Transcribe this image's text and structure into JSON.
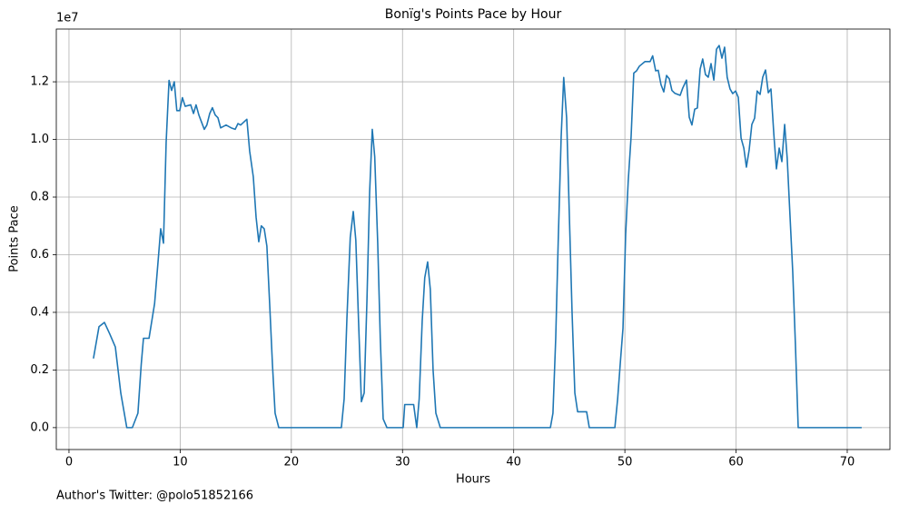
{
  "chart_data": {
    "type": "line",
    "title": "Bonïg's Points Pace by Hour",
    "x_label": "Hours",
    "y_label": "Points Pace",
    "y_offset_label": "1e7",
    "footer": "Author's Twitter: @polo51852166",
    "grid": true,
    "xlim": [
      -1.14,
      73.84
    ],
    "ylim": [
      -0.076,
      1.383
    ],
    "xticks": [
      0,
      10,
      20,
      30,
      40,
      50,
      60,
      70
    ],
    "yticks": [
      {
        "value": 0,
        "label": "0.0"
      },
      0.2,
      0.4,
      0.6,
      0.8,
      {
        "value": 1,
        "label": "1.0"
      },
      1.2
    ],
    "x": [
      2.2,
      2.7,
      3.19,
      3.68,
      4.17,
      4.66,
      5.2,
      5.7,
      6.2,
      6.5,
      6.7,
      7.2,
      7.7,
      8.0,
      8.25,
      8.5,
      8.74,
      9.0,
      9.23,
      9.47,
      9.7,
      9.96,
      10.2,
      10.45,
      10.95,
      11.2,
      11.43,
      11.68,
      12.17,
      12.4,
      12.66,
      12.9,
      13.15,
      13.4,
      13.64,
      14.13,
      14.6,
      14.95,
      15.2,
      15.44,
      16.0,
      16.25,
      16.58,
      16.83,
      17.07,
      17.3,
      17.56,
      17.8,
      18.05,
      18.3,
      18.54,
      18.87,
      24.5,
      24.75,
      25.0,
      25.3,
      25.57,
      25.8,
      26.05,
      26.3,
      26.55,
      26.8,
      27.04,
      27.28,
      27.5,
      27.77,
      28.0,
      28.26,
      28.6,
      30.06,
      30.2,
      31.0,
      31.28,
      31.5,
      31.77,
      32.0,
      32.26,
      32.5,
      32.75,
      33.0,
      33.4,
      43.3,
      43.53,
      43.78,
      44.0,
      44.27,
      44.5,
      44.76,
      45.0,
      45.25,
      45.5,
      45.75,
      46.56,
      46.8,
      49.1,
      49.35,
      49.6,
      49.83,
      50.07,
      50.3,
      50.56,
      50.8,
      51.05,
      51.3,
      51.8,
      52.27,
      52.5,
      52.77,
      53.0,
      53.25,
      53.5,
      53.75,
      54.0,
      54.23,
      54.5,
      54.97,
      55.2,
      55.54,
      55.79,
      56.03,
      56.28,
      56.52,
      56.77,
      57.0,
      57.25,
      57.5,
      57.75,
      58.0,
      58.24,
      58.48,
      58.73,
      58.97,
      59.2,
      59.46,
      59.7,
      59.96,
      60.2,
      60.45,
      60.7,
      60.93,
      61.18,
      61.42,
      61.67,
      61.9,
      62.16,
      62.4,
      62.65,
      62.9,
      63.14,
      63.4,
      63.63,
      63.88,
      64.12,
      64.37,
      64.6,
      64.85,
      65.1,
      65.34,
      65.59,
      71.3
    ],
    "series": [
      {
        "name": "Points Pace",
        "color": "#1f77b4",
        "values": [
          0.24,
          0.35,
          0.365,
          0.324,
          0.28,
          0.12,
          0,
          0,
          0.05,
          0.22,
          0.31,
          0.31,
          0.43,
          0.57,
          0.69,
          0.64,
          0.99,
          1.205,
          1.17,
          1.2,
          1.1,
          1.1,
          1.145,
          1.115,
          1.12,
          1.09,
          1.12,
          1.085,
          1.035,
          1.05,
          1.09,
          1.11,
          1.085,
          1.075,
          1.04,
          1.05,
          1.04,
          1.035,
          1.055,
          1.05,
          1.07,
          0.96,
          0.87,
          0.73,
          0.645,
          0.7,
          0.69,
          0.63,
          0.43,
          0.22,
          0.05,
          0,
          0,
          0.1,
          0.38,
          0.66,
          0.75,
          0.65,
          0.365,
          0.09,
          0.12,
          0.44,
          0.815,
          1.035,
          0.94,
          0.64,
          0.31,
          0.03,
          0,
          0,
          0.08,
          0.08,
          0,
          0.1,
          0.37,
          0.52,
          0.575,
          0.48,
          0.2,
          0.05,
          0,
          0,
          0.05,
          0.31,
          0.64,
          1.01,
          1.215,
          1.075,
          0.745,
          0.4,
          0.12,
          0.055,
          0.055,
          0,
          0,
          0.1,
          0.23,
          0.345,
          0.67,
          0.855,
          1.01,
          1.23,
          1.238,
          1.254,
          1.27,
          1.27,
          1.29,
          1.238,
          1.24,
          1.19,
          1.165,
          1.222,
          1.21,
          1.17,
          1.16,
          1.153,
          1.178,
          1.206,
          1.077,
          1.05,
          1.105,
          1.109,
          1.244,
          1.279,
          1.225,
          1.216,
          1.263,
          1.206,
          1.313,
          1.326,
          1.282,
          1.32,
          1.216,
          1.175,
          1.159,
          1.168,
          1.146,
          1.005,
          0.97,
          0.904,
          0.964,
          1.052,
          1.074,
          1.168,
          1.156,
          1.216,
          1.241,
          1.162,
          1.175,
          1.017,
          0.898,
          0.97,
          0.923,
          1.052,
          0.935,
          0.737,
          0.539,
          0.287,
          0,
          0
        ]
      }
    ]
  }
}
